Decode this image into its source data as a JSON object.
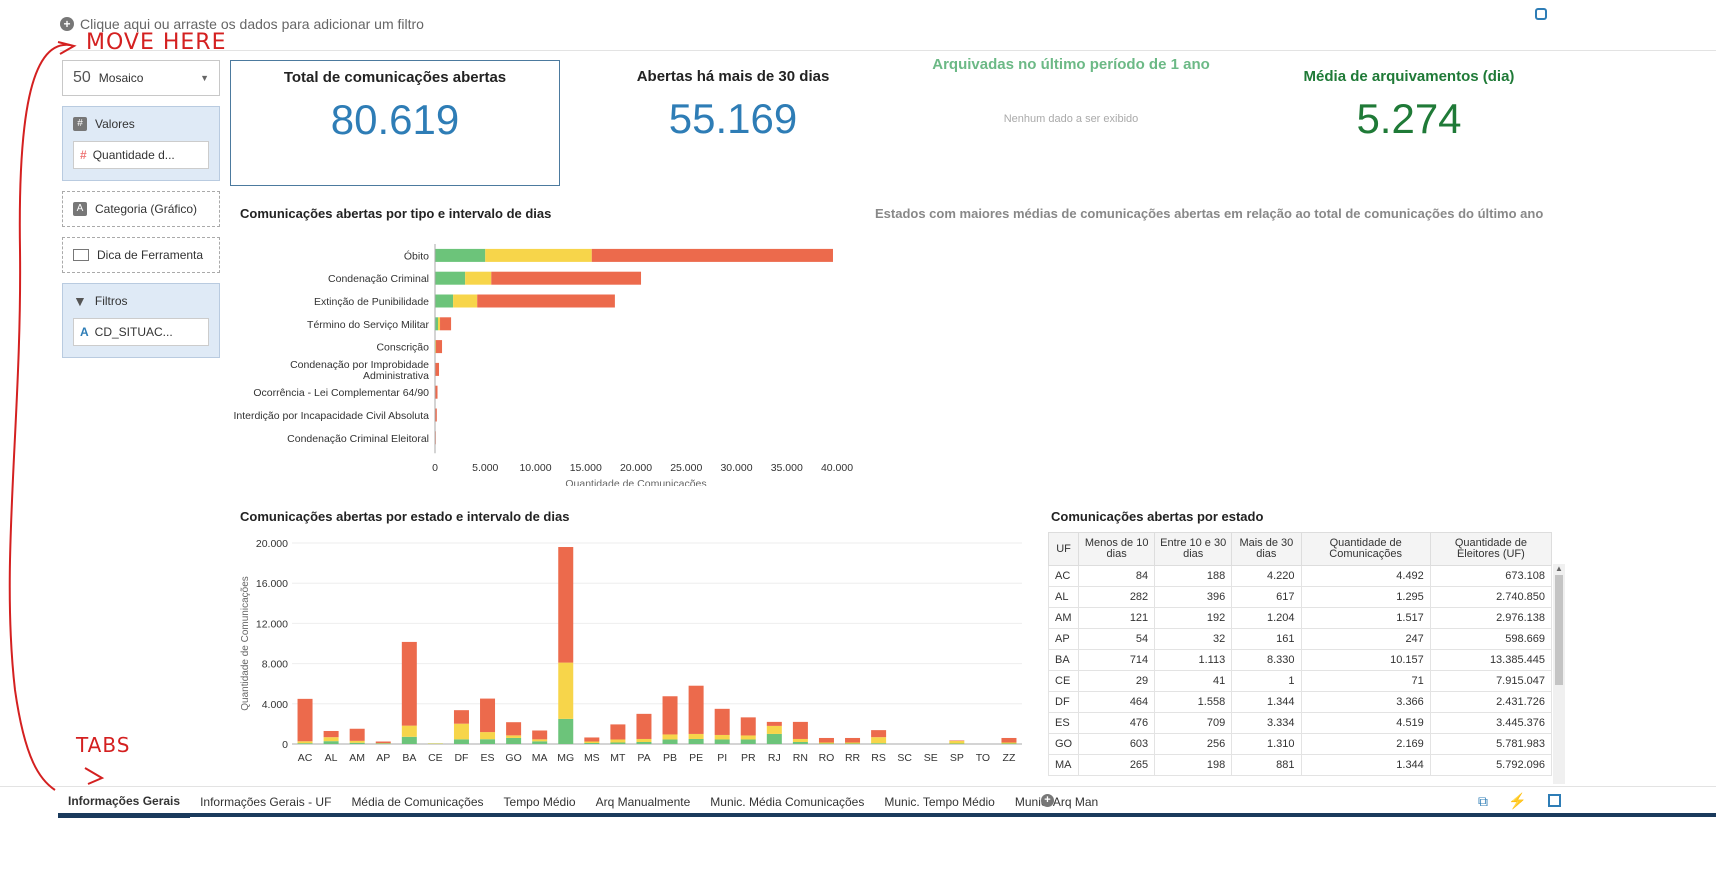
{
  "filterbar": {
    "text": "Clique aqui ou arraste os dados para adicionar um filtro"
  },
  "left_panel": {
    "view_type": "Mosaico",
    "view_icon_text": "50",
    "values_label": "Valores",
    "values_item": "Quantidade d...",
    "category_label": "Categoria (Gráfico)",
    "tooltip_label": "Dica de Ferramenta",
    "filters_label": "Filtros",
    "filters_item": "CD_SITUAC..."
  },
  "kpis": {
    "total_title": "Total de comunicações abertas",
    "total_value": "80.619",
    "over30_title": "Abertas há mais de 30 dias",
    "over30_value": "55.169",
    "archived_title": "Arquivadas no último período de 1 ano",
    "archived_empty": "Nenhum dado a ser exibido",
    "avg_title": "Média de arquivamentos (dia)",
    "avg_value": "5.274"
  },
  "estados_title": "Estados com maiores médias de comunicações abertas em relação ao total de comunicações do último ano",
  "colors": {
    "green": "#6cc47a",
    "yellow": "#f7d54a",
    "red": "#ec6a4c",
    "blue": "#2e7db6",
    "darkgreen": "#1f7a37"
  },
  "chart_data": [
    {
      "type": "bar",
      "orientation": "horizontal",
      "stacked": true,
      "title": "Comunicações abertas por tipo e intervalo de dias",
      "xlabel": "Quantidade de Comunicações",
      "xlim": [
        0,
        40000
      ],
      "xticks": [
        "0",
        "5.000",
        "10.000",
        "15.000",
        "20.000",
        "25.000",
        "30.000",
        "35.000",
        "40.000"
      ],
      "categories": [
        "Óbito",
        "Condenação Criminal",
        "Extinção de Punibilidade",
        "Término do Serviço Militar",
        "Conscrição",
        "Condenação por Improbidade|Administrativa",
        "Ocorrência - Lei Complementar 64/90",
        "Interdição por Incapacidade Civil Absoluta",
        "Condenação Criminal Eleitoral"
      ],
      "series": [
        {
          "color": "#6cc47a",
          "values": [
            5000,
            3000,
            1800,
            300,
            0,
            0,
            0,
            0,
            0
          ]
        },
        {
          "color": "#f7d54a",
          "values": [
            10600,
            2600,
            2400,
            200,
            100,
            50,
            50,
            30,
            0
          ]
        },
        {
          "color": "#ec6a4c",
          "values": [
            24000,
            14900,
            13700,
            1100,
            600,
            350,
            200,
            150,
            80
          ]
        }
      ]
    },
    {
      "type": "bar",
      "stacked": true,
      "title": "Comunicações abertas por estado e intervalo de dias",
      "ylabel": "Quantidade de Comunicações",
      "ylim": [
        0,
        20000
      ],
      "yticks": [
        "0",
        "4.000",
        "8.000",
        "12.000",
        "16.000",
        "20.000"
      ],
      "categories": [
        "AC",
        "AL",
        "AM",
        "AP",
        "BA",
        "CE",
        "DF",
        "ES",
        "GO",
        "MA",
        "MG",
        "MS",
        "MT",
        "PA",
        "PB",
        "PE",
        "PI",
        "PR",
        "RJ",
        "RN",
        "RO",
        "RR",
        "RS",
        "SC",
        "SE",
        "SP",
        "TO",
        "ZZ"
      ],
      "series": [
        {
          "color": "#6cc47a",
          "values": [
            84,
            282,
            121,
            54,
            714,
            29,
            464,
            476,
            603,
            265,
            2500,
            100,
            150,
            200,
            450,
            500,
            450,
            450,
            1000,
            200,
            50,
            50,
            80,
            0,
            0,
            50,
            0,
            50
          ]
        },
        {
          "color": "#f7d54a",
          "values": [
            188,
            396,
            192,
            32,
            1113,
            41,
            1558,
            709,
            256,
            198,
            5600,
            150,
            300,
            300,
            500,
            500,
            450,
            400,
            800,
            300,
            100,
            100,
            600,
            0,
            0,
            250,
            0,
            100
          ]
        },
        {
          "color": "#ec6a4c",
          "values": [
            4220,
            617,
            1204,
            161,
            8330,
            1,
            1344,
            3334,
            1310,
            881,
            11500,
            400,
            1500,
            2500,
            3800,
            4800,
            2600,
            1800,
            400,
            1700,
            450,
            450,
            700,
            0,
            0,
            50,
            0,
            450
          ]
        }
      ]
    },
    {
      "type": "table",
      "title": "Comunicações abertas por estado",
      "columns": [
        "UF",
        "Menos de 10 dias",
        "Entre 10 e 30 dias",
        "Mais de 30 dias",
        "Quantidade de Comunicações",
        "Quantidade de Eleitores (UF)"
      ],
      "rows": [
        [
          "AC",
          "84",
          "188",
          "4.220",
          "4.492",
          "673.108"
        ],
        [
          "AL",
          "282",
          "396",
          "617",
          "1.295",
          "2.740.850"
        ],
        [
          "AM",
          "121",
          "192",
          "1.204",
          "1.517",
          "2.976.138"
        ],
        [
          "AP",
          "54",
          "32",
          "161",
          "247",
          "598.669"
        ],
        [
          "BA",
          "714",
          "1.113",
          "8.330",
          "10.157",
          "13.385.445"
        ],
        [
          "CE",
          "29",
          "41",
          "1",
          "71",
          "7.915.047"
        ],
        [
          "DF",
          "464",
          "1.558",
          "1.344",
          "3.366",
          "2.431.726"
        ],
        [
          "ES",
          "476",
          "709",
          "3.334",
          "4.519",
          "3.445.376"
        ],
        [
          "GO",
          "603",
          "256",
          "1.310",
          "2.169",
          "5.781.983"
        ],
        [
          "MA",
          "265",
          "198",
          "881",
          "1.344",
          "5.792.096"
        ]
      ]
    }
  ],
  "tabs": [
    "Informações Gerais",
    "Informações Gerais - UF",
    "Média de Comunicações",
    "Tempo Médio",
    "Arq Manualmente",
    "Munic. Média Comunicações",
    "Munic. Tempo Médio",
    "Munic. Arq Man"
  ],
  "annotations": {
    "move_here": "MOVE HERE",
    "tabs": "TABS"
  }
}
